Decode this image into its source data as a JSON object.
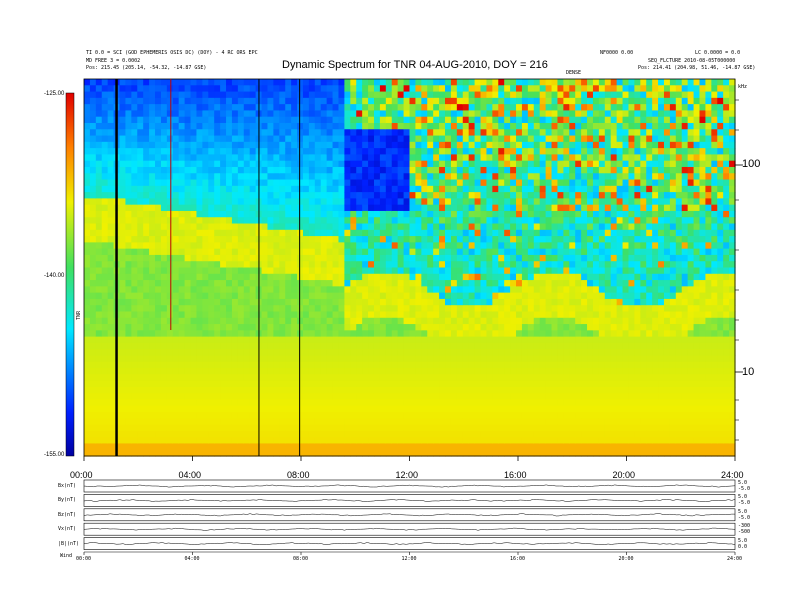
{
  "chart_data": {
    "type": "heatmap",
    "title": "Dynamic Spectrum for TNR 04-AUG-2010, DOY = 216",
    "header_left": [
      "TI 0.0 = SCI (GOD EPHEMERIS OSIS DC) (DOY) - 4 RC ORS EPC",
      "MD FREE 3 = 0.0002",
      "Pos:    215.45 (205.14, -54.32, -14.87 GSE)"
    ],
    "header_right": [
      "NF0000 0.00",
      "LC 0.0000 = 0.0",
      "SEQ_FLCTURE 2010-08-05T000000",
      "Pos:    214.41 (204.98, 51.46, -14.87 GSE)"
    ],
    "marker_label": "DENSE",
    "x_ticks": [
      "00:00",
      "04:00",
      "08:00",
      "12:00",
      "16:00",
      "20:00",
      "24:00"
    ],
    "xlim": [
      0,
      24
    ],
    "y_ticks_right": [
      "100",
      "10"
    ],
    "y_scale": "log",
    "y_unit": "kHz",
    "colorbar": {
      "ticks": [
        "-125.00",
        "-140.00",
        "-155.00"
      ],
      "range": [
        -155,
        -125
      ],
      "label": "TNR",
      "colors": [
        "#0000a0",
        "#0020ff",
        "#00e8ff",
        "#40e060",
        "#f0f000",
        "#ff8000",
        "#e00000"
      ]
    },
    "vertical_lines_hours": [
      1.2,
      3.2,
      6.45,
      7.95
    ],
    "panels": [
      {
        "label": "Bx(nT)",
        "right_ticks": [
          "5.0",
          "-5.0"
        ]
      },
      {
        "label": "By(nT)",
        "right_ticks": [
          "5.0",
          "-5.0"
        ]
      },
      {
        "label": "Bz(nT)",
        "right_ticks": [
          "5.0",
          "-5.0"
        ]
      },
      {
        "label": "Vx(nT)",
        "right_ticks": [
          "-300",
          "-500"
        ]
      },
      {
        "label": "|B|(nT)",
        "right_ticks": [
          "5.0",
          "0.0"
        ]
      }
    ],
    "bottom_axis_ticks": [
      "00:00",
      "04:00",
      "08:00",
      "12:00",
      "16:00",
      "20:00",
      "24:00"
    ],
    "bottom_axis_label": "Wind"
  }
}
